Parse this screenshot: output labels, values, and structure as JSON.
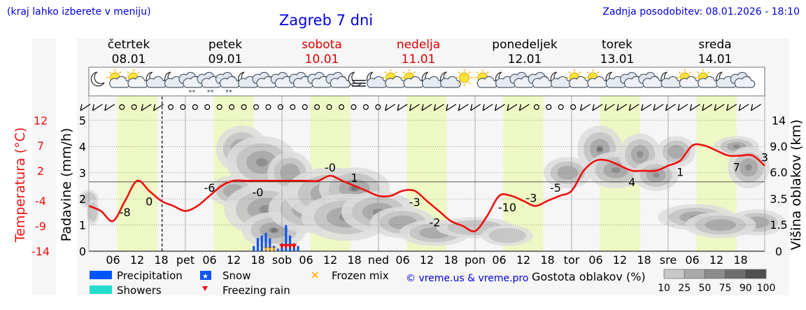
{
  "header": {
    "hint": "(kraj lahko izberete v meniju)",
    "title": "Zagreb 7 dni",
    "updated": "Zadnja posodobitev: 08.01.2026 - 18:10"
  },
  "days": [
    {
      "name": "četrtek",
      "date": "08.01",
      "weekend": false
    },
    {
      "name": "petek",
      "date": "09.01",
      "weekend": false
    },
    {
      "name": "sobota",
      "date": "10.01",
      "weekend": true
    },
    {
      "name": "nedelja",
      "date": "11.01",
      "weekend": true
    },
    {
      "name": "ponedeljek",
      "date": "12.01",
      "weekend": false
    },
    {
      "name": "torek",
      "date": "13.01",
      "weekend": false
    },
    {
      "name": "sreda",
      "date": "14.01",
      "weekend": false
    }
  ],
  "x_ticks": [
    "06",
    "12",
    "18",
    "pet",
    "06",
    "12",
    "18",
    "sob",
    "06",
    "12",
    "18",
    "ned",
    "06",
    "12",
    "18",
    "pon",
    "06",
    "12",
    "18",
    "tor",
    "06",
    "12",
    "18",
    "sre",
    "06",
    "12",
    "18"
  ],
  "icons": [
    "moon",
    "sun-cloud",
    "sun-cloud",
    "cloud-night",
    "cloud-night",
    "snow-cloud",
    "snow-cloud",
    "snow-cloud",
    "cloud-night",
    "cloud",
    "cloud",
    "cloud",
    "cloud",
    "cloud",
    "fog-night",
    "cloud-night",
    "sun-cloud",
    "sun-cloud",
    "cloud-night",
    "cloud-night",
    "sun",
    "sun-cloud",
    "cloud-night",
    "cloud",
    "cloud",
    "cloud-night",
    "sun-cloud",
    "sun-cloud",
    "cloud-night",
    "cloud",
    "cloud",
    "cloud-night",
    "sun-cloud",
    "sun-cloud",
    "cloud-night",
    "cloud"
  ],
  "wind_row": [
    "barb",
    "barb",
    "barb",
    "calm",
    "calm",
    "barb",
    "barb",
    "calm",
    "calm",
    "calm",
    "calm",
    "calm",
    "calm",
    "calm",
    "calm",
    "calm",
    "calm",
    "calm",
    "calm",
    "calm",
    "calm",
    "calm",
    "calm",
    "calm",
    "calm",
    "barb",
    "barb",
    "barb",
    "barb",
    "barb",
    "barb",
    "barb",
    "barb",
    "barb",
    "barb",
    "barb",
    "barb",
    "calm",
    "calm",
    "calm",
    "calm",
    "barb",
    "barb",
    "barb",
    "barb",
    "barb",
    "barb",
    "barb",
    "barb",
    "barb",
    "barb",
    "barb",
    "barb",
    "barb",
    "barb",
    "barb"
  ],
  "colors": {
    "temperature": "#ee1111",
    "precipitation": "#0055ff",
    "showers": "#22ddcc",
    "snow": "#1155ee",
    "freezing_rain": "#ee1111",
    "frozen_mix": "#ffaa00",
    "day_highlight": "#eef8c4",
    "weekend_label": "#dd0000",
    "title": "#0000dd"
  },
  "chart_data": {
    "type": "line",
    "x_unit": "hours since 08.01 00:00",
    "left_axis_label": "Padavine (mm/h)",
    "left_ticks": [
      "0",
      "1",
      "2",
      "3",
      "4",
      "5"
    ],
    "left_range": [
      0,
      5
    ],
    "temp_axis_label": "Temperatura (°C)",
    "temp_ticks": [
      "-14",
      "-9",
      "-4",
      "2",
      "7",
      "12"
    ],
    "temp_range": [
      -14,
      12
    ],
    "right_axis_label": "Višina oblakov (km)",
    "right_ticks": [
      "0",
      "1.5",
      "3.5",
      "6.0",
      "9.0",
      "14"
    ],
    "temperature": {
      "name": "Temperatura",
      "x": [
        0,
        3,
        6,
        9,
        12,
        15,
        18,
        21,
        24,
        27,
        30,
        33,
        36,
        39,
        42,
        45,
        48,
        51,
        54,
        57,
        60,
        63,
        66,
        69,
        72,
        75,
        78,
        81,
        84,
        87,
        90,
        93,
        96,
        99,
        102,
        105,
        108,
        111,
        114,
        117,
        120,
        123,
        126,
        129,
        132,
        135,
        138,
        141,
        144,
        147,
        150,
        153,
        156,
        159,
        162,
        165,
        168
      ],
      "values": [
        -5,
        -6,
        -8,
        -4,
        0,
        -2,
        -4,
        -5,
        -6,
        -5,
        -3,
        -1,
        0,
        0,
        0,
        0,
        0,
        0,
        0,
        0,
        1,
        0,
        -1,
        -2,
        -3,
        -3,
        -2,
        -2,
        -4,
        -6,
        -8,
        -9,
        -10,
        -7,
        -3,
        -3,
        -4,
        -5,
        -4,
        -3,
        -2,
        2,
        4,
        4,
        3,
        2,
        2,
        2,
        3,
        4,
        7,
        7,
        6,
        5,
        5,
        5,
        3
      ],
      "labels": [
        {
          "x": 9,
          "text": "-8"
        },
        {
          "x": 15,
          "text": "0"
        },
        {
          "x": 30,
          "text": "-6"
        },
        {
          "x": 42,
          "text": "-0"
        },
        {
          "x": 60,
          "text": "-0"
        },
        {
          "x": 66,
          "text": "1"
        },
        {
          "x": 81,
          "text": "-3"
        },
        {
          "x": 86,
          "text": "-2"
        },
        {
          "x": 104,
          "text": "-10"
        },
        {
          "x": 110,
          "text": "-3"
        },
        {
          "x": 116,
          "text": "-5"
        },
        {
          "x": 135,
          "text": "4"
        },
        {
          "x": 147,
          "text": "1"
        },
        {
          "x": 161,
          "text": "7"
        },
        {
          "x": 168,
          "text": "3"
        }
      ]
    },
    "precipitation": {
      "name": "Precipitation",
      "type": "snow",
      "x": [
        41,
        42,
        43,
        44,
        45,
        46,
        47,
        48,
        49,
        50,
        51,
        52
      ],
      "values": [
        0.2,
        0.5,
        0.6,
        0.7,
        0.5,
        0.2,
        0.1,
        0.3,
        1.0,
        0.6,
        0.3,
        0.2
      ]
    },
    "freezing_rain_x": [
      48,
      49,
      50,
      51
    ],
    "frozen_mix_x": [
      44,
      45,
      46
    ],
    "cloud_height_line_km": 5.3,
    "legend": {
      "precipitation": "Precipitation",
      "showers": "Showers",
      "snow": "Snow",
      "freezing_rain": "Freezing rain",
      "frozen_mix": "Frozen mix",
      "copyright": "© vreme.us & vreme.pro",
      "cloud_title": "Gostota oblakov (%)",
      "cloud_scale": [
        "10",
        "25",
        "50",
        "75",
        "90",
        "100"
      ]
    }
  }
}
